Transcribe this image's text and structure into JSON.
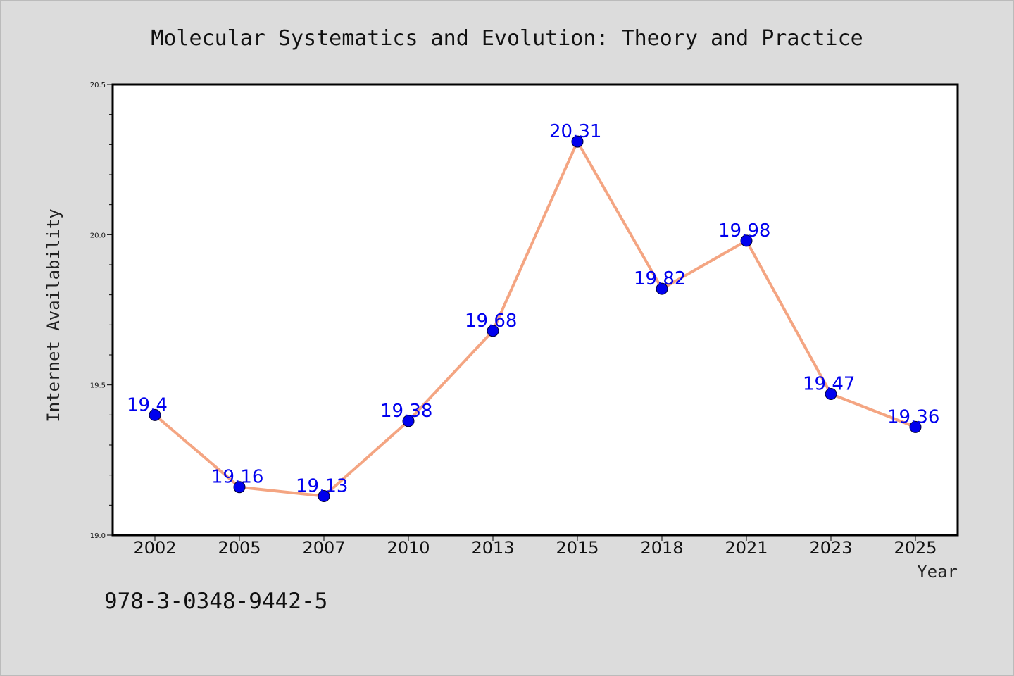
{
  "chart_data": {
    "type": "line",
    "title": "Molecular Systematics and Evolution: Theory and Practice",
    "xlabel": "Year",
    "ylabel": "Internet Availability",
    "categories": [
      "2002",
      "2005",
      "2007",
      "2010",
      "2013",
      "2015",
      "2018",
      "2021",
      "2023",
      "2025"
    ],
    "series": [
      {
        "values": [
          19.4,
          19.16,
          19.13,
          19.38,
          19.68,
          20.31,
          19.82,
          19.98,
          19.47,
          19.36
        ]
      }
    ],
    "data_labels": [
      "19.4",
      "19.16",
      "19.13",
      "19.38",
      "19.68",
      "20.31",
      "19.82",
      "19.98",
      "19.47",
      "19.36"
    ],
    "ylim": [
      19.0,
      20.5
    ],
    "yticks": [
      "19.0",
      "19.5",
      "20.0",
      "20.5"
    ],
    "grid": false,
    "line_color": "#f4a582",
    "marker_color": "#0000ee",
    "label_color": "#0000ee",
    "background_color": "#dcdcdc"
  },
  "footer": {
    "isbn": "978-3-0348-9442-5"
  }
}
